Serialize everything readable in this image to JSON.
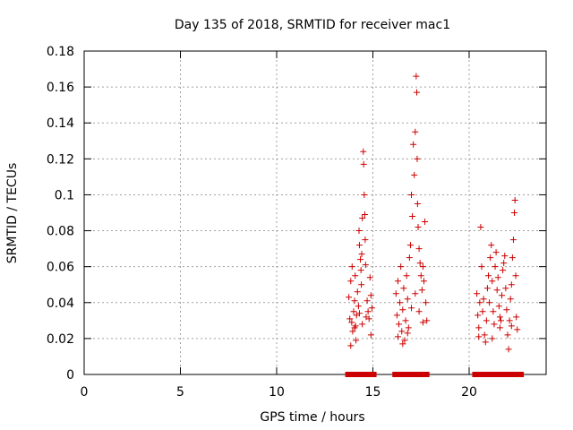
{
  "chart_data": {
    "type": "scatter",
    "title": "Day 135 of 2018, SRMTID for receiver mac1",
    "xlabel": "GPS time / hours",
    "ylabel": "SRMTID / TECUs",
    "xlim": [
      0,
      24
    ],
    "ylim": [
      0,
      0.18
    ],
    "x_ticks": [
      0,
      5,
      10,
      15,
      20
    ],
    "x_tick_labels": [
      "0",
      "5",
      "10",
      "15",
      "20"
    ],
    "y_ticks": [
      0,
      0.02,
      0.04,
      0.06,
      0.08,
      0.1,
      0.12,
      0.14,
      0.16,
      0.18
    ],
    "y_tick_labels": [
      "0",
      "0.02",
      "0.04",
      "0.06",
      "0.08",
      "0.1",
      "0.12",
      "0.14",
      "0.16",
      "0.18"
    ],
    "grid": true,
    "marker_color": "#cc0000",
    "series": [
      {
        "name": "SRMTID",
        "marker": "plus",
        "points": [
          [
            13.75,
            0.043
          ],
          [
            13.8,
            0.031
          ],
          [
            13.85,
            0.052
          ],
          [
            13.9,
            0.029
          ],
          [
            13.92,
            0.06
          ],
          [
            13.95,
            0.024
          ],
          [
            14.0,
            0.035
          ],
          [
            14.05,
            0.041
          ],
          [
            14.08,
            0.055
          ],
          [
            14.1,
            0.027
          ],
          [
            14.12,
            0.019
          ],
          [
            14.15,
            0.033
          ],
          [
            14.2,
            0.046
          ],
          [
            14.25,
            0.038
          ],
          [
            14.28,
            0.08
          ],
          [
            14.3,
            0.072
          ],
          [
            14.35,
            0.064
          ],
          [
            14.38,
            0.058
          ],
          [
            14.4,
            0.05
          ],
          [
            14.42,
            0.067
          ],
          [
            14.45,
            0.087
          ],
          [
            14.5,
            0.124
          ],
          [
            14.52,
            0.117
          ],
          [
            14.55,
            0.1
          ],
          [
            14.58,
            0.089
          ],
          [
            14.6,
            0.075
          ],
          [
            14.62,
            0.061
          ],
          [
            14.7,
            0.041
          ],
          [
            14.75,
            0.035
          ],
          [
            14.8,
            0.031
          ],
          [
            14.85,
            0.054
          ],
          [
            14.9,
            0.044
          ],
          [
            14.95,
            0.037
          ],
          [
            13.85,
            0.016
          ],
          [
            14.05,
            0.026
          ],
          [
            14.3,
            0.034
          ],
          [
            14.45,
            0.028
          ],
          [
            14.65,
            0.032
          ],
          [
            14.9,
            0.022
          ],
          [
            16.2,
            0.045
          ],
          [
            16.25,
            0.033
          ],
          [
            16.3,
            0.052
          ],
          [
            16.35,
            0.028
          ],
          [
            16.4,
            0.04
          ],
          [
            16.45,
            0.06
          ],
          [
            16.5,
            0.024
          ],
          [
            16.55,
            0.036
          ],
          [
            16.6,
            0.048
          ],
          [
            16.65,
            0.019
          ],
          [
            16.7,
            0.03
          ],
          [
            16.75,
            0.055
          ],
          [
            16.8,
            0.042
          ],
          [
            16.85,
            0.026
          ],
          [
            16.9,
            0.065
          ],
          [
            16.95,
            0.072
          ],
          [
            17.0,
            0.1
          ],
          [
            17.05,
            0.088
          ],
          [
            17.1,
            0.128
          ],
          [
            17.15,
            0.111
          ],
          [
            17.2,
            0.135
          ],
          [
            17.25,
            0.166
          ],
          [
            17.28,
            0.157
          ],
          [
            17.3,
            0.12
          ],
          [
            17.32,
            0.095
          ],
          [
            17.35,
            0.082
          ],
          [
            17.4,
            0.07
          ],
          [
            17.45,
            0.062
          ],
          [
            17.5,
            0.055
          ],
          [
            17.55,
            0.047
          ],
          [
            17.6,
            0.06
          ],
          [
            17.65,
            0.052
          ],
          [
            17.7,
            0.085
          ],
          [
            17.75,
            0.04
          ],
          [
            17.8,
            0.03
          ],
          [
            16.3,
            0.021
          ],
          [
            16.55,
            0.017
          ],
          [
            16.8,
            0.023
          ],
          [
            17.0,
            0.037
          ],
          [
            17.2,
            0.045
          ],
          [
            17.4,
            0.035
          ],
          [
            17.6,
            0.029
          ],
          [
            20.4,
            0.045
          ],
          [
            20.45,
            0.033
          ],
          [
            20.5,
            0.026
          ],
          [
            20.55,
            0.04
          ],
          [
            20.6,
            0.082
          ],
          [
            20.65,
            0.06
          ],
          [
            20.7,
            0.035
          ],
          [
            20.75,
            0.042
          ],
          [
            20.8,
            0.022
          ],
          [
            20.85,
            0.018
          ],
          [
            20.9,
            0.03
          ],
          [
            20.95,
            0.048
          ],
          [
            21.0,
            0.055
          ],
          [
            21.05,
            0.04
          ],
          [
            21.1,
            0.065
          ],
          [
            21.15,
            0.072
          ],
          [
            21.2,
            0.052
          ],
          [
            21.25,
            0.035
          ],
          [
            21.3,
            0.028
          ],
          [
            21.35,
            0.06
          ],
          [
            21.4,
            0.068
          ],
          [
            21.45,
            0.047
          ],
          [
            21.5,
            0.054
          ],
          [
            21.55,
            0.038
          ],
          [
            21.6,
            0.026
          ],
          [
            21.65,
            0.03
          ],
          [
            21.7,
            0.044
          ],
          [
            21.75,
            0.058
          ],
          [
            21.8,
            0.062
          ],
          [
            21.85,
            0.066
          ],
          [
            21.9,
            0.048
          ],
          [
            21.95,
            0.036
          ],
          [
            22.0,
            0.022
          ],
          [
            22.05,
            0.014
          ],
          [
            22.1,
            0.03
          ],
          [
            22.15,
            0.042
          ],
          [
            22.2,
            0.05
          ],
          [
            22.25,
            0.065
          ],
          [
            22.3,
            0.075
          ],
          [
            22.35,
            0.09
          ],
          [
            22.38,
            0.097
          ],
          [
            22.42,
            0.055
          ],
          [
            22.45,
            0.032
          ],
          [
            22.5,
            0.025
          ],
          [
            20.5,
            0.021
          ],
          [
            21.2,
            0.02
          ],
          [
            21.6,
            0.032
          ],
          [
            22.2,
            0.027
          ]
        ]
      },
      {
        "name": "baseline markers",
        "marker": "square",
        "points": [
          [
            13.7,
            0
          ],
          [
            13.85,
            0
          ],
          [
            14.0,
            0
          ],
          [
            14.15,
            0
          ],
          [
            14.3,
            0
          ],
          [
            14.45,
            0
          ],
          [
            14.6,
            0
          ],
          [
            14.75,
            0
          ],
          [
            14.9,
            0
          ],
          [
            15.05,
            0
          ],
          [
            16.15,
            0
          ],
          [
            16.3,
            0
          ],
          [
            16.45,
            0
          ],
          [
            16.6,
            0
          ],
          [
            16.75,
            0
          ],
          [
            16.9,
            0
          ],
          [
            17.05,
            0
          ],
          [
            17.2,
            0
          ],
          [
            17.35,
            0
          ],
          [
            17.5,
            0
          ],
          [
            17.65,
            0
          ],
          [
            17.8,
            0
          ],
          [
            20.3,
            0
          ],
          [
            20.45,
            0
          ],
          [
            20.6,
            0
          ],
          [
            20.75,
            0
          ],
          [
            20.9,
            0
          ],
          [
            21.05,
            0
          ],
          [
            21.2,
            0
          ],
          [
            21.35,
            0
          ],
          [
            21.5,
            0
          ],
          [
            21.65,
            0
          ],
          [
            21.8,
            0
          ],
          [
            21.95,
            0
          ],
          [
            22.1,
            0
          ],
          [
            22.25,
            0
          ],
          [
            22.4,
            0
          ],
          [
            22.55,
            0
          ],
          [
            22.7,
            0
          ]
        ]
      }
    ]
  }
}
